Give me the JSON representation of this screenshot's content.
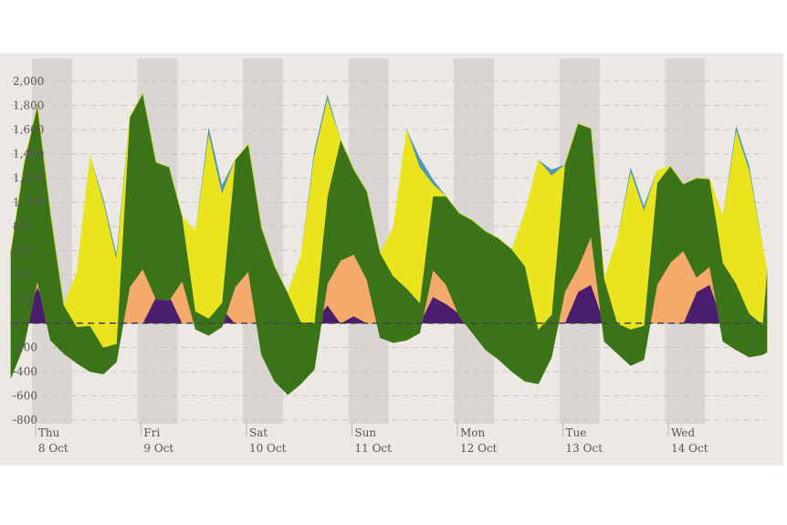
{
  "chart_data": {
    "type": "area",
    "title": "",
    "xlabel": "",
    "ylabel": "",
    "ylim": [
      -850,
      2050
    ],
    "yticks": [
      2000,
      1800,
      1600,
      1400,
      1200,
      1000,
      800,
      600,
      400,
      200,
      0,
      -200,
      -400,
      -600,
      -800
    ],
    "ytick_labels": [
      "2,000",
      "1,800",
      "1,600",
      "1,400",
      "1,200",
      "1,000",
      "800",
      "600",
      "400",
      "200",
      "0",
      "-200",
      "-400",
      "-600",
      "-800"
    ],
    "x_unit": "days",
    "x_range": [
      "2020-10-07 18:00",
      "2020-10-14 22:00"
    ],
    "x_ticks": [
      {
        "day": "Thu",
        "date": "8 Oct"
      },
      {
        "day": "Fri",
        "date": "9 Oct"
      },
      {
        "day": "Sat",
        "date": "10 Oct"
      },
      {
        "day": "Sun",
        "date": "11 Oct"
      },
      {
        "day": "Mon",
        "date": "12 Oct"
      },
      {
        "day": "Tue",
        "date": "13 Oct"
      },
      {
        "day": "Wed",
        "date": "14 Oct"
      }
    ],
    "x_tick_times": [
      "2020-10-08 00:00",
      "2020-10-09 00:00",
      "2020-10-10 00:00",
      "2020-10-11 00:00",
      "2020-10-12 00:00",
      "2020-10-13 00:00",
      "2020-10-14 00:00"
    ],
    "zero_line": "dashed",
    "grid": true,
    "legend": "none",
    "night_bands": true,
    "stacking": "cumulative from the purple series upward; the yellow series sits on top",
    "x": [
      "7 Oct 18:00",
      "7 Oct 21:00",
      "8 Oct 00:00",
      "8 Oct 03:00",
      "8 Oct 06:00",
      "8 Oct 09:00",
      "8 Oct 12:00",
      "8 Oct 15:00",
      "8 Oct 18:00",
      "8 Oct 21:00",
      "9 Oct 00:00",
      "9 Oct 03:00",
      "9 Oct 06:00",
      "9 Oct 09:00",
      "9 Oct 12:00",
      "9 Oct 15:00",
      "9 Oct 18:00",
      "9 Oct 21:00",
      "10 Oct 00:00",
      "10 Oct 03:00",
      "10 Oct 06:00",
      "10 Oct 09:00",
      "10 Oct 12:00",
      "10 Oct 15:00",
      "10 Oct 18:00",
      "10 Oct 21:00",
      "11 Oct 00:00",
      "11 Oct 03:00",
      "11 Oct 06:00",
      "11 Oct 09:00",
      "11 Oct 12:00",
      "11 Oct 15:00",
      "11 Oct 18:00",
      "11 Oct 21:00",
      "12 Oct 00:00",
      "12 Oct 03:00",
      "12 Oct 06:00",
      "12 Oct 09:00",
      "12 Oct 12:00",
      "12 Oct 15:00",
      "12 Oct 18:00",
      "12 Oct 21:00",
      "13 Oct 00:00",
      "13 Oct 03:00",
      "13 Oct 06:00",
      "13 Oct 09:00",
      "13 Oct 12:00",
      "13 Oct 15:00",
      "13 Oct 18:00",
      "13 Oct 21:00",
      "14 Oct 00:00",
      "14 Oct 03:00",
      "14 Oct 06:00",
      "14 Oct 09:00",
      "14 Oct 12:00",
      "14 Oct 15:00",
      "14 Oct 18:00",
      "14 Oct 21:00",
      "14 Oct 22:00"
    ],
    "series": [
      {
        "color": "#4b1d6e",
        "values": [
          0,
          0,
          300,
          60,
          0,
          0,
          0,
          0,
          0,
          0,
          0,
          220,
          230,
          0,
          0,
          0,
          120,
          0,
          0,
          0,
          0,
          0,
          0,
          0,
          150,
          0,
          60,
          0,
          0,
          0,
          0,
          0,
          220,
          160,
          80,
          0,
          0,
          0,
          0,
          0,
          0,
          0,
          0,
          260,
          320,
          0,
          0,
          0,
          0,
          0,
          0,
          0,
          260,
          320,
          0,
          0,
          0,
          0,
          0
        ]
      },
      {
        "color": "#f4aa6a",
        "values": [
          -450,
          -180,
          50,
          -200,
          -250,
          -330,
          -400,
          -420,
          -320,
          300,
          450,
          -20,
          -40,
          350,
          -50,
          -100,
          -150,
          300,
          430,
          -260,
          -480,
          -590,
          -500,
          -380,
          180,
          520,
          510,
          360,
          -120,
          -160,
          -140,
          -80,
          220,
          160,
          -20,
          -80,
          -220,
          -300,
          -400,
          -480,
          -500,
          -280,
          260,
          200,
          400,
          -150,
          -250,
          -350,
          -300,
          320,
          500,
          600,
          120,
          150,
          -150,
          -220,
          -280,
          -260,
          -240
        ]
      },
      {
        "color": "#3a7318",
        "values": [
          1050,
          1500,
          1450,
          1050,
          400,
          300,
          380,
          220,
          150,
          1400,
          1450,
          1130,
          1100,
          530,
          150,
          140,
          200,
          1050,
          1050,
          1050,
          950,
          840,
          510,
          380,
          720,
          1000,
          700,
          730,
          700,
          550,
          430,
          250,
          610,
          730,
          850,
          930,
          980,
          1000,
          1010,
          950,
          450,
          350,
          1050,
          1190,
          890,
          520,
          250,
          300,
          280,
          840,
          800,
          550,
          820,
          720,
          650,
          550,
          360,
          250,
          680
        ]
      },
      {
        "color": "#e9e41d",
        "values": [
          0,
          0,
          0,
          0,
          0,
          450,
          1400,
          1200,
          700,
          0,
          0,
          0,
          0,
          0,
          660,
          1520,
          900,
          0,
          0,
          0,
          0,
          0,
          550,
          1380,
          800,
          0,
          0,
          0,
          0,
          400,
          1310,
          1120,
          100,
          0,
          0,
          0,
          0,
          0,
          0,
          450,
          1400,
          1150,
          0,
          0,
          0,
          0,
          700,
          1300,
          950,
          100,
          0,
          0,
          0,
          0,
          380,
          1260,
          1180,
          650,
          0
        ]
      }
    ],
    "point_series": [
      {
        "color": "#3f8fb0",
        "values": [
          0,
          0,
          0,
          0,
          0,
          0,
          0,
          30,
          40,
          0,
          0,
          0,
          0,
          0,
          0,
          60,
          70,
          0,
          0,
          0,
          0,
          0,
          0,
          40,
          40,
          0,
          0,
          0,
          0,
          0,
          0,
          80,
          40,
          0,
          0,
          0,
          0,
          0,
          0,
          0,
          0,
          50,
          0,
          0,
          0,
          0,
          0,
          40,
          40,
          0,
          0,
          0,
          0,
          0,
          0,
          40,
          40,
          0,
          0
        ]
      }
    ]
  }
}
